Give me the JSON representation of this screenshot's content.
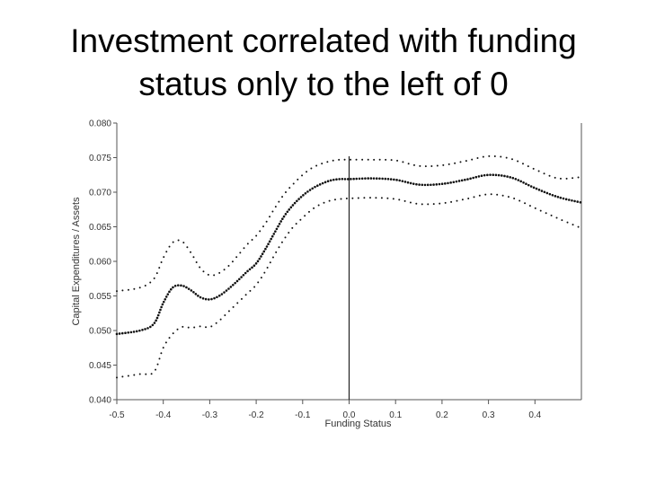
{
  "slide": {
    "title_line1": "Investment correlated with funding",
    "title_line2": "status only to the left of 0"
  },
  "chart_data": {
    "type": "line",
    "title": "",
    "xlabel": "Funding Status",
    "ylabel": "Capital Expenditures / Assets",
    "xlim": [
      -0.5,
      0.5
    ],
    "ylim": [
      0.04,
      0.08
    ],
    "x_ticks": [
      -0.5,
      -0.4,
      -0.3,
      -0.2,
      -0.1,
      0.0,
      0.1,
      0.2,
      0.3,
      0.4
    ],
    "x_tick_labels": [
      "-0.5",
      "-0.4",
      "-0.3",
      "-0.2",
      "-0.1",
      "0.0",
      "0.1",
      "0.2",
      "0.3",
      "0.4"
    ],
    "y_ticks": [
      0.04,
      0.045,
      0.05,
      0.055,
      0.06,
      0.065,
      0.07,
      0.075,
      0.08
    ],
    "y_tick_labels": [
      "0.040",
      "0.045",
      "0.050",
      "0.055",
      "0.060",
      "0.065",
      "0.070",
      "0.075",
      "0.080"
    ],
    "vline_x": 0.0,
    "grid": false,
    "legend": "none",
    "series": [
      {
        "style": "dotted",
        "x": [
          -0.5,
          -0.45,
          -0.42,
          -0.4,
          -0.38,
          -0.36,
          -0.34,
          -0.32,
          -0.3,
          -0.28,
          -0.26,
          -0.24,
          -0.22,
          -0.2,
          -0.18,
          -0.16,
          -0.14,
          -0.12,
          -0.1,
          -0.08,
          -0.06,
          -0.04,
          -0.02,
          0.0,
          0.05,
          0.1,
          0.15,
          0.2,
          0.25,
          0.3,
          0.35,
          0.4,
          0.45,
          0.5
        ],
        "y": [
          0.0557,
          0.0562,
          0.0575,
          0.0605,
          0.0627,
          0.0629,
          0.0612,
          0.059,
          0.058,
          0.0583,
          0.0593,
          0.0608,
          0.0624,
          0.0637,
          0.0655,
          0.0677,
          0.0697,
          0.0712,
          0.0725,
          0.0735,
          0.0741,
          0.0745,
          0.0747,
          0.0747,
          0.0747,
          0.0746,
          0.0738,
          0.0739,
          0.0745,
          0.0752,
          0.0748,
          0.0733,
          0.072,
          0.0722
        ]
      },
      {
        "style": "dotted-dense",
        "x": [
          -0.5,
          -0.45,
          -0.42,
          -0.4,
          -0.38,
          -0.36,
          -0.34,
          -0.32,
          -0.3,
          -0.28,
          -0.26,
          -0.24,
          -0.22,
          -0.2,
          -0.18,
          -0.16,
          -0.14,
          -0.12,
          -0.1,
          -0.08,
          -0.06,
          -0.04,
          -0.02,
          0.0,
          0.05,
          0.1,
          0.15,
          0.2,
          0.25,
          0.3,
          0.35,
          0.4,
          0.45,
          0.5
        ],
        "y": [
          0.0495,
          0.05,
          0.051,
          0.054,
          0.0562,
          0.0565,
          0.0558,
          0.0548,
          0.0545,
          0.055,
          0.056,
          0.0572,
          0.0585,
          0.0597,
          0.0618,
          0.0642,
          0.0665,
          0.0682,
          0.0695,
          0.0705,
          0.0712,
          0.0717,
          0.0719,
          0.0719,
          0.072,
          0.0718,
          0.0711,
          0.0712,
          0.0718,
          0.0725,
          0.0721,
          0.0706,
          0.0693,
          0.0685
        ]
      },
      {
        "style": "dotted",
        "x": [
          -0.5,
          -0.45,
          -0.42,
          -0.4,
          -0.38,
          -0.36,
          -0.34,
          -0.32,
          -0.3,
          -0.28,
          -0.26,
          -0.24,
          -0.22,
          -0.2,
          -0.18,
          -0.16,
          -0.14,
          -0.12,
          -0.1,
          -0.08,
          -0.06,
          -0.04,
          -0.02,
          0.0,
          0.05,
          0.1,
          0.15,
          0.2,
          0.25,
          0.3,
          0.35,
          0.4,
          0.45,
          0.5
        ],
        "y": [
          0.0432,
          0.0437,
          0.044,
          0.0475,
          0.0495,
          0.0505,
          0.0504,
          0.0506,
          0.0505,
          0.0514,
          0.0527,
          0.054,
          0.0553,
          0.0566,
          0.0586,
          0.061,
          0.0632,
          0.065,
          0.0663,
          0.0675,
          0.0683,
          0.0688,
          0.069,
          0.0691,
          0.0692,
          0.069,
          0.0683,
          0.0684,
          0.069,
          0.0697,
          0.0692,
          0.0677,
          0.0662,
          0.0648
        ]
      }
    ]
  }
}
